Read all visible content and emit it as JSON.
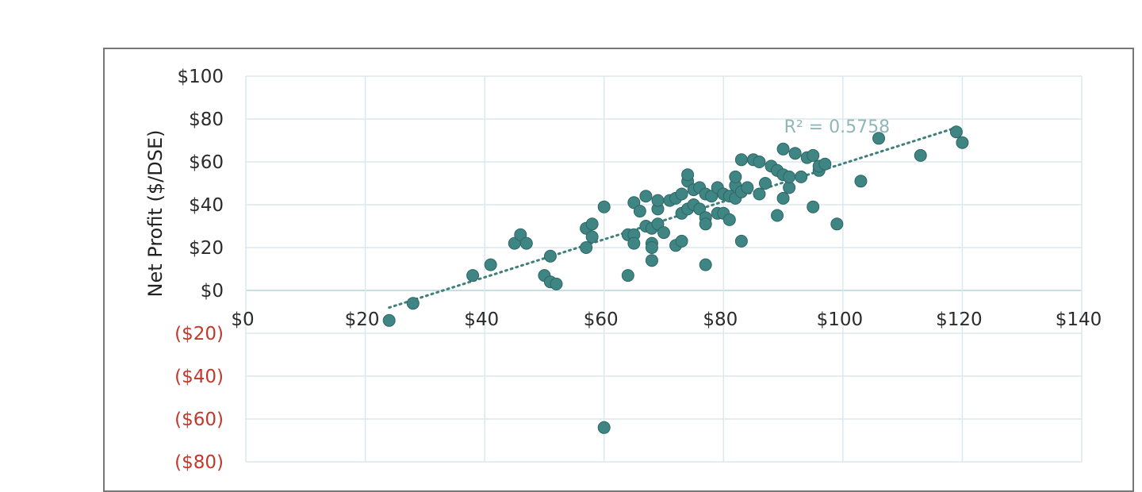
{
  "colors": {
    "title": "#1e9a55",
    "marker": "#3f8583",
    "marker_edge": "#2e6765",
    "trend": "#3f7f7c",
    "grid": "#dbe9ee",
    "negative_tick": "#c0392b",
    "r2_text": "#8fb7b8"
  },
  "chart_data": {
    "type": "scatter",
    "ylabel": "Net Profit ($/DSE)",
    "r_squared_label": "R² = 0.5758",
    "xlim": [
      0,
      140
    ],
    "ylim": [
      -80,
      100
    ],
    "x_ticks": [
      "$0",
      "$20",
      "$40",
      "$60",
      "$80",
      "$100",
      "$120",
      "$140"
    ],
    "x_tick_values": [
      0,
      20,
      40,
      60,
      80,
      100,
      120,
      140
    ],
    "y_ticks": [
      "$100",
      "$80",
      "$60",
      "$40",
      "$20",
      "$0",
      "($20)",
      "($40)",
      "($60)",
      "($80)"
    ],
    "y_tick_values": [
      100,
      80,
      60,
      40,
      20,
      0,
      -20,
      -40,
      -60,
      -80
    ],
    "grid": true,
    "trendline": {
      "type": "linear",
      "x": [
        24,
        119
      ],
      "y": [
        -8,
        76
      ]
    },
    "points": [
      [
        24,
        -14
      ],
      [
        28,
        -6
      ],
      [
        38,
        7
      ],
      [
        41,
        12
      ],
      [
        45,
        22
      ],
      [
        46,
        26
      ],
      [
        47,
        22
      ],
      [
        50,
        7
      ],
      [
        51,
        4
      ],
      [
        51,
        16
      ],
      [
        52,
        3
      ],
      [
        57,
        29
      ],
      [
        57,
        20
      ],
      [
        58,
        25
      ],
      [
        58,
        31
      ],
      [
        60,
        39
      ],
      [
        64,
        26
      ],
      [
        64,
        7
      ],
      [
        65,
        26
      ],
      [
        65,
        22
      ],
      [
        65,
        41
      ],
      [
        66,
        37
      ],
      [
        67,
        44
      ],
      [
        67,
        30
      ],
      [
        68,
        29
      ],
      [
        68,
        22
      ],
      [
        68,
        20
      ],
      [
        68,
        14
      ],
      [
        69,
        31
      ],
      [
        69,
        38
      ],
      [
        69,
        42
      ],
      [
        70,
        27
      ],
      [
        71,
        42
      ],
      [
        72,
        43
      ],
      [
        72,
        21
      ],
      [
        73,
        23
      ],
      [
        73,
        36
      ],
      [
        73,
        45
      ],
      [
        74,
        51
      ],
      [
        74,
        38
      ],
      [
        74,
        54
      ],
      [
        75,
        47
      ],
      [
        75,
        40
      ],
      [
        76,
        48
      ],
      [
        76,
        38
      ],
      [
        77,
        45
      ],
      [
        77,
        34
      ],
      [
        77,
        31
      ],
      [
        77,
        12
      ],
      [
        78,
        44
      ],
      [
        79,
        48
      ],
      [
        79,
        36
      ],
      [
        80,
        45
      ],
      [
        80,
        36
      ],
      [
        81,
        33
      ],
      [
        81,
        44
      ],
      [
        82,
        49
      ],
      [
        82,
        53
      ],
      [
        82,
        43
      ],
      [
        83,
        61
      ],
      [
        83,
        46
      ],
      [
        83,
        23
      ],
      [
        84,
        48
      ],
      [
        85,
        61
      ],
      [
        86,
        45
      ],
      [
        86,
        60
      ],
      [
        87,
        50
      ],
      [
        88,
        58
      ],
      [
        89,
        35
      ],
      [
        89,
        56
      ],
      [
        90,
        66
      ],
      [
        90,
        54
      ],
      [
        90,
        43
      ],
      [
        91,
        48
      ],
      [
        91,
        53
      ],
      [
        92,
        64
      ],
      [
        93,
        53
      ],
      [
        94,
        62
      ],
      [
        95,
        63
      ],
      [
        95,
        39
      ],
      [
        96,
        56
      ],
      [
        96,
        58
      ],
      [
        97,
        59
      ],
      [
        99,
        31
      ],
      [
        103,
        51
      ],
      [
        106,
        71
      ],
      [
        113,
        63
      ],
      [
        119,
        74
      ],
      [
        120,
        69
      ],
      [
        60,
        -64
      ]
    ]
  }
}
